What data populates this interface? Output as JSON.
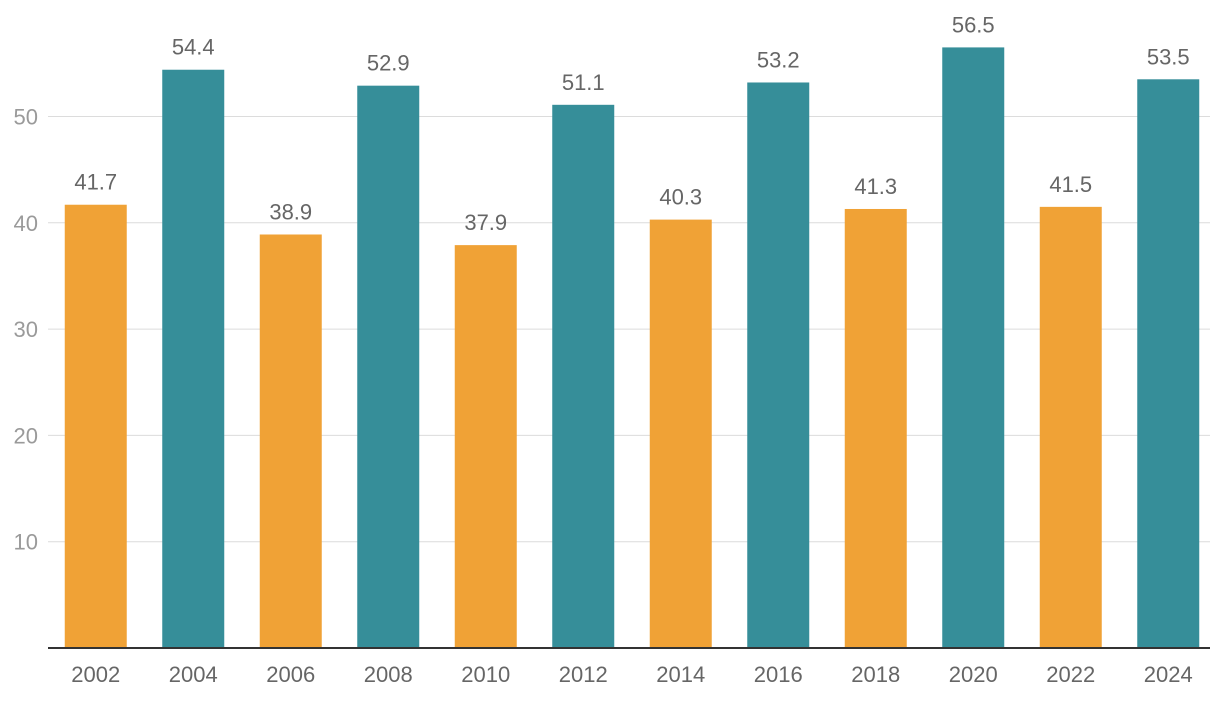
{
  "chart_data": {
    "type": "bar",
    "title": "",
    "xlabel": "",
    "ylabel": "",
    "categories": [
      "2002",
      "2004",
      "2006",
      "2008",
      "2010",
      "2012",
      "2014",
      "2016",
      "2018",
      "2020",
      "2022",
      "2024"
    ],
    "values": [
      41.7,
      54.4,
      38.9,
      52.9,
      37.9,
      51.1,
      40.3,
      53.2,
      41.3,
      56.5,
      41.5,
      53.5
    ],
    "data_labels": [
      "41.7",
      "54.4",
      "38.9",
      "52.9",
      "37.9",
      "51.1",
      "40.3",
      "53.2",
      "41.3",
      "56.5",
      "41.5",
      "53.5"
    ],
    "bar_colors": [
      "#f0a236",
      "#368e99",
      "#f0a236",
      "#368e99",
      "#f0a236",
      "#368e99",
      "#f0a236",
      "#368e99",
      "#f0a236",
      "#368e99",
      "#f0a236",
      "#368e99"
    ],
    "ylim": [
      0,
      60
    ],
    "yticks": [
      10,
      20,
      30,
      40,
      50
    ],
    "ytick_labels": [
      "10",
      "20",
      "30",
      "40",
      "50"
    ],
    "grid": true,
    "legend": "none"
  }
}
